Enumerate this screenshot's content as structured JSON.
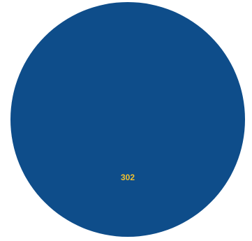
{
  "chart_data": {
    "type": "pie",
    "categories": [
      ""
    ],
    "values": [
      302
    ],
    "data_labels": [
      "302"
    ],
    "colors": [
      "#0e4d8a"
    ],
    "label_color": "#f2c12e",
    "title": "",
    "legend": "none"
  }
}
